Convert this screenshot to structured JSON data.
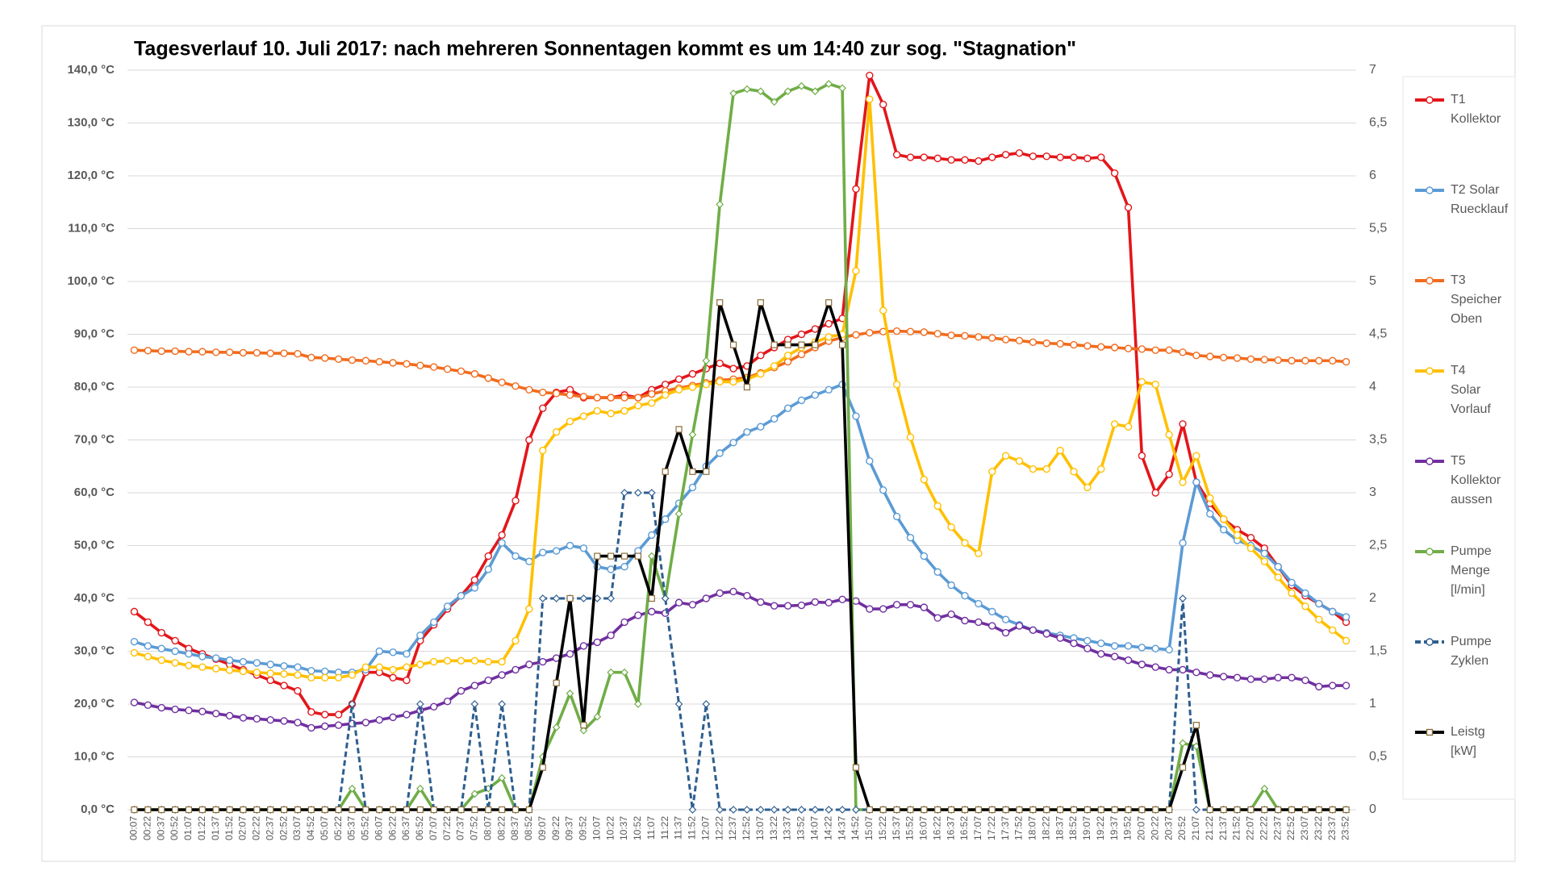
{
  "chart_data": {
    "type": "line",
    "title": "Tagesverlauf 10. Juli 2017: nach mehreren Sonnentagen kommt es um 14:40 zur sog. \"Stagnation\"",
    "categories": [
      "00:07",
      "00:22",
      "00:37",
      "00:52",
      "01:07",
      "01:22",
      "01:37",
      "01:52",
      "02:07",
      "02:22",
      "02:37",
      "02:52",
      "03:07",
      "04:52",
      "05:07",
      "05:22",
      "05:37",
      "05:52",
      "06:07",
      "06:22",
      "06:37",
      "06:52",
      "07:07",
      "07:22",
      "07:37",
      "07:52",
      "08:07",
      "08:22",
      "08:37",
      "08:52",
      "09:07",
      "09:22",
      "09:37",
      "09:52",
      "10:07",
      "10:22",
      "10:37",
      "10:52",
      "11:07",
      "11:22",
      "11:37",
      "11:52",
      "12:07",
      "12:22",
      "12:37",
      "12:52",
      "13:07",
      "13:22",
      "13:37",
      "13:52",
      "14:07",
      "14:22",
      "14:37",
      "14:52",
      "15:07",
      "15:22",
      "15:37",
      "15:52",
      "16:07",
      "16:22",
      "16:37",
      "16:52",
      "17:07",
      "17:22",
      "17:37",
      "17:52",
      "18:07",
      "18:22",
      "18:37",
      "18:52",
      "19:07",
      "19:22",
      "19:37",
      "19:52",
      "20:07",
      "20:22",
      "20:37",
      "20:52",
      "21:07",
      "21:22",
      "21:37",
      "21:52",
      "22:07",
      "22:22",
      "22:37",
      "22:52",
      "23:07",
      "23:22",
      "23:37",
      "23:52"
    ],
    "ylim": [
      0,
      140
    ],
    "yticks": [
      {
        "value": 0,
        "label": "0,0 °C"
      },
      {
        "value": 10,
        "label": "10,0 °C"
      },
      {
        "value": 20,
        "label": "20,0 °C"
      },
      {
        "value": 30,
        "label": "30,0 °C"
      },
      {
        "value": 40,
        "label": "40,0 °C"
      },
      {
        "value": 50,
        "label": "50,0 °C"
      },
      {
        "value": 60,
        "label": "60,0 °C"
      },
      {
        "value": 70,
        "label": "70,0 °C"
      },
      {
        "value": 80,
        "label": "80,0 °C"
      },
      {
        "value": 90,
        "label": "90,0 °C"
      },
      {
        "value": 100,
        "label": "100,0 °C"
      },
      {
        "value": 110,
        "label": "110,0 °C"
      },
      {
        "value": 120,
        "label": "120,0 °C"
      },
      {
        "value": 130,
        "label": "130,0 °C"
      },
      {
        "value": 140,
        "label": "140,0 °C"
      }
    ],
    "y2lim": [
      0,
      7
    ],
    "y2ticks": [
      0,
      {
        "value": 0.5,
        "label": "0,5"
      },
      1,
      {
        "value": 1.5,
        "label": "1,5"
      },
      2,
      {
        "value": 2.5,
        "label": "2,5"
      },
      3,
      {
        "value": 3.5,
        "label": "3,5"
      },
      4,
      {
        "value": 4.5,
        "label": "4,5"
      },
      5,
      {
        "value": 5.5,
        "label": "5,5"
      },
      6,
      {
        "value": 6.5,
        "label": "6,5"
      },
      7
    ],
    "grid": true,
    "legend": "right",
    "series": [
      {
        "name": "T1 Kollektor",
        "color": "#e3161b",
        "marker": "circle",
        "values": [
          37.5,
          35.5,
          33.5,
          32,
          30.5,
          29.5,
          28.5,
          27.5,
          26.5,
          25.5,
          24.5,
          23.5,
          22.5,
          18.5,
          18,
          18,
          20,
          26,
          26,
          25,
          24.5,
          32,
          35,
          38,
          40.5,
          43.5,
          48,
          52,
          58.5,
          70,
          76,
          79,
          79.5,
          78,
          78,
          78,
          78.5,
          78,
          79.5,
          80.5,
          81.5,
          82.5,
          83.5,
          84.5,
          83.5,
          84,
          86,
          87.5,
          89,
          90,
          91,
          92,
          93,
          117.5,
          139,
          133.5,
          124,
          123.5,
          123.5,
          123.3,
          123,
          123,
          122.8,
          123.5,
          124,
          124.3,
          123.7,
          123.7,
          123.5,
          123.5,
          123.3,
          123.5,
          120.5,
          114,
          67,
          60,
          63.5,
          73,
          62,
          58,
          55,
          53,
          51.5,
          49.5,
          46,
          42.5,
          40.5,
          39,
          37.5,
          35.5
        ]
      },
      {
        "name": "T2 Solar Ruecklauf",
        "color": "#5b9bd5",
        "marker": "circle",
        "values": [
          31.8,
          31,
          30.5,
          30,
          29.5,
          29,
          28.7,
          28.3,
          28,
          27.8,
          27.5,
          27.2,
          27,
          26.3,
          26.2,
          26,
          26,
          26.5,
          30,
          29.8,
          29.5,
          33,
          35.5,
          38.5,
          40.5,
          42,
          45.5,
          50.5,
          48,
          47,
          48.7,
          49,
          50,
          49.5,
          46,
          45.5,
          46,
          49,
          52,
          55,
          58,
          61,
          65,
          67.5,
          69.5,
          71.5,
          72.5,
          74,
          76,
          77.5,
          78.5,
          79.5,
          80.5,
          74.5,
          66,
          60.5,
          55.5,
          51.5,
          48,
          45,
          42.5,
          40.5,
          39,
          37.5,
          36,
          35,
          34,
          33.5,
          33,
          32.5,
          32,
          31.5,
          31,
          31,
          30.7,
          30.5,
          30.3,
          50.5,
          62,
          56,
          53,
          51,
          50,
          48.5,
          46,
          43,
          41,
          39,
          37.5,
          36.5
        ]
      },
      {
        "name": "T3 Speicher Oben",
        "color": "#f26b1d",
        "marker": "circle",
        "values": [
          87,
          86.9,
          86.8,
          86.8,
          86.7,
          86.7,
          86.6,
          86.6,
          86.5,
          86.5,
          86.4,
          86.4,
          86.3,
          85.6,
          85.5,
          85.3,
          85.1,
          85,
          84.8,
          84.6,
          84.4,
          84.1,
          83.8,
          83.4,
          83,
          82.5,
          81.7,
          80.9,
          80.2,
          79.5,
          79,
          78.8,
          78.5,
          78.2,
          78,
          78,
          78,
          78,
          78.7,
          79.3,
          79.8,
          80.3,
          80.8,
          81.3,
          81.5,
          81.8,
          82.7,
          83.7,
          84.8,
          86.2,
          87.5,
          88.7,
          89.4,
          89.9,
          90.3,
          90.5,
          90.6,
          90.5,
          90.4,
          90.1,
          89.8,
          89.7,
          89.5,
          89.3,
          89,
          88.8,
          88.5,
          88.3,
          88.2,
          88,
          87.8,
          87.6,
          87.5,
          87.3,
          87.2,
          87,
          87,
          86.6,
          86,
          85.8,
          85.6,
          85.5,
          85.3,
          85.2,
          85.1,
          85,
          85,
          85,
          85,
          84.8
        ]
      },
      {
        "name": "T4 Solar Vorlauf",
        "color": "#ffc000",
        "marker": "circle",
        "values": [
          29.7,
          29,
          28.3,
          27.8,
          27.3,
          27,
          26.7,
          26.4,
          26.2,
          26,
          25.8,
          25.7,
          25.5,
          25,
          25,
          25,
          25.5,
          27,
          27,
          26.5,
          27,
          27.5,
          28,
          28.2,
          28.2,
          28.2,
          28,
          28,
          32,
          38,
          68,
          71.5,
          73.5,
          74.5,
          75.5,
          75,
          75.5,
          76.5,
          77,
          78.5,
          79.5,
          80,
          80.5,
          81,
          81,
          81.5,
          82.5,
          84,
          86,
          87.5,
          88.5,
          89.5,
          90,
          102,
          134.5,
          94.5,
          80.5,
          70.5,
          62.5,
          57.5,
          53.5,
          50.5,
          48.5,
          64,
          67,
          66,
          64.5,
          64.5,
          68,
          64,
          61,
          64.5,
          73,
          72.5,
          81,
          80.5,
          71,
          62,
          67,
          59,
          55,
          52,
          49.5,
          47,
          44,
          41,
          38.5,
          36,
          34,
          32
        ]
      },
      {
        "name": "T5 Kollektor aussen",
        "color": "#7030a0",
        "marker": "circle",
        "values": [
          20.3,
          19.8,
          19.3,
          19,
          18.8,
          18.6,
          18.2,
          17.8,
          17.4,
          17.2,
          17,
          16.8,
          16.5,
          15.5,
          15.8,
          16,
          16.3,
          16.5,
          17,
          17.5,
          18,
          18.8,
          19.5,
          20.5,
          22.5,
          23.5,
          24.5,
          25.5,
          26.5,
          27.5,
          28,
          28.7,
          29.5,
          31,
          31.7,
          33,
          35.5,
          36.8,
          37.5,
          37.2,
          39.2,
          38.8,
          40,
          41,
          41.3,
          40.5,
          39.3,
          38.6,
          38.6,
          38.7,
          39.3,
          39.2,
          39.8,
          39.5,
          38,
          38,
          38.8,
          38.8,
          38.3,
          36.3,
          37,
          35.8,
          35.5,
          34.8,
          33.5,
          34.8,
          34,
          33.3,
          32.5,
          31.5,
          30.5,
          29.5,
          29,
          28.3,
          27.5,
          27,
          26.5,
          26.5,
          26,
          25.5,
          25.2,
          25,
          24.7,
          24.7,
          25,
          25,
          24.5,
          23.3,
          23.5,
          23.5
        ]
      },
      {
        "name": "Pumpe Menge [l/min]",
        "color": "#70ad47",
        "marker": "diamond",
        "axis": "y2",
        "values": [
          0,
          0,
          0,
          0,
          0,
          0,
          0,
          0,
          0,
          0,
          0,
          0,
          0,
          0,
          0,
          0,
          0.2,
          0,
          0,
          0,
          0,
          0.2,
          0,
          0,
          0,
          0.15,
          0.2,
          0.3,
          0,
          0,
          0.5,
          0.78,
          1.1,
          0.75,
          0.88,
          1.3,
          1.3,
          1.0,
          2.4,
          2.0,
          2.8,
          3.55,
          4.25,
          5.73,
          6.78,
          6.82,
          6.8,
          6.7,
          6.8,
          6.85,
          6.8,
          6.87,
          6.83,
          0,
          0,
          0,
          0,
          0,
          0,
          0,
          0,
          0,
          0,
          0,
          0,
          0,
          0,
          0,
          0,
          0,
          0,
          0,
          0,
          0,
          0,
          0,
          0,
          0.63,
          0.6,
          0,
          0,
          0,
          0,
          0.2,
          0,
          0,
          0,
          0,
          0,
          0
        ]
      },
      {
        "name": "Pumpe Zyklen",
        "color": "#2e5f8f",
        "marker": "diamond",
        "dashed": true,
        "axis": "y2",
        "values": [
          0,
          0,
          0,
          0,
          0,
          0,
          0,
          0,
          0,
          0,
          0,
          0,
          0,
          0,
          0,
          0,
          1,
          0,
          0,
          0,
          0,
          1,
          0,
          0,
          0,
          1,
          0,
          1,
          0,
          0,
          2,
          2,
          2,
          2,
          2,
          2,
          3,
          3,
          3,
          2,
          1,
          0,
          1,
          0,
          0,
          0,
          0,
          0,
          0,
          0,
          0,
          0,
          0,
          0,
          0,
          0,
          0,
          0,
          0,
          0,
          0,
          0,
          0,
          0,
          0,
          0,
          0,
          0,
          0,
          0,
          0,
          0,
          0,
          0,
          0,
          0,
          0,
          2,
          0,
          0,
          0,
          0,
          0,
          0,
          0,
          0,
          0,
          0,
          0,
          0
        ]
      },
      {
        "name": "Leistg [kW]",
        "color": "#000000",
        "marker": "square",
        "axis": "y2",
        "values": [
          0,
          0,
          0,
          0,
          0,
          0,
          0,
          0,
          0,
          0,
          0,
          0,
          0,
          0,
          0,
          0,
          0,
          0,
          0,
          0,
          0,
          0,
          0,
          0,
          0,
          0,
          0,
          0,
          0,
          0,
          0.4,
          1.2,
          2.0,
          0.8,
          2.4,
          2.4,
          2.4,
          2.4,
          2.0,
          3.2,
          3.6,
          3.2,
          3.2,
          4.8,
          4.4,
          4.0,
          4.8,
          4.4,
          4.4,
          4.4,
          4.4,
          4.8,
          4.4,
          0.4,
          0,
          0,
          0,
          0,
          0,
          0,
          0,
          0,
          0,
          0,
          0,
          0,
          0,
          0,
          0,
          0,
          0,
          0,
          0,
          0,
          0,
          0,
          0,
          0.4,
          0.8,
          0,
          0,
          0,
          0,
          0,
          0,
          0,
          0,
          0,
          0,
          0
        ]
      }
    ]
  }
}
